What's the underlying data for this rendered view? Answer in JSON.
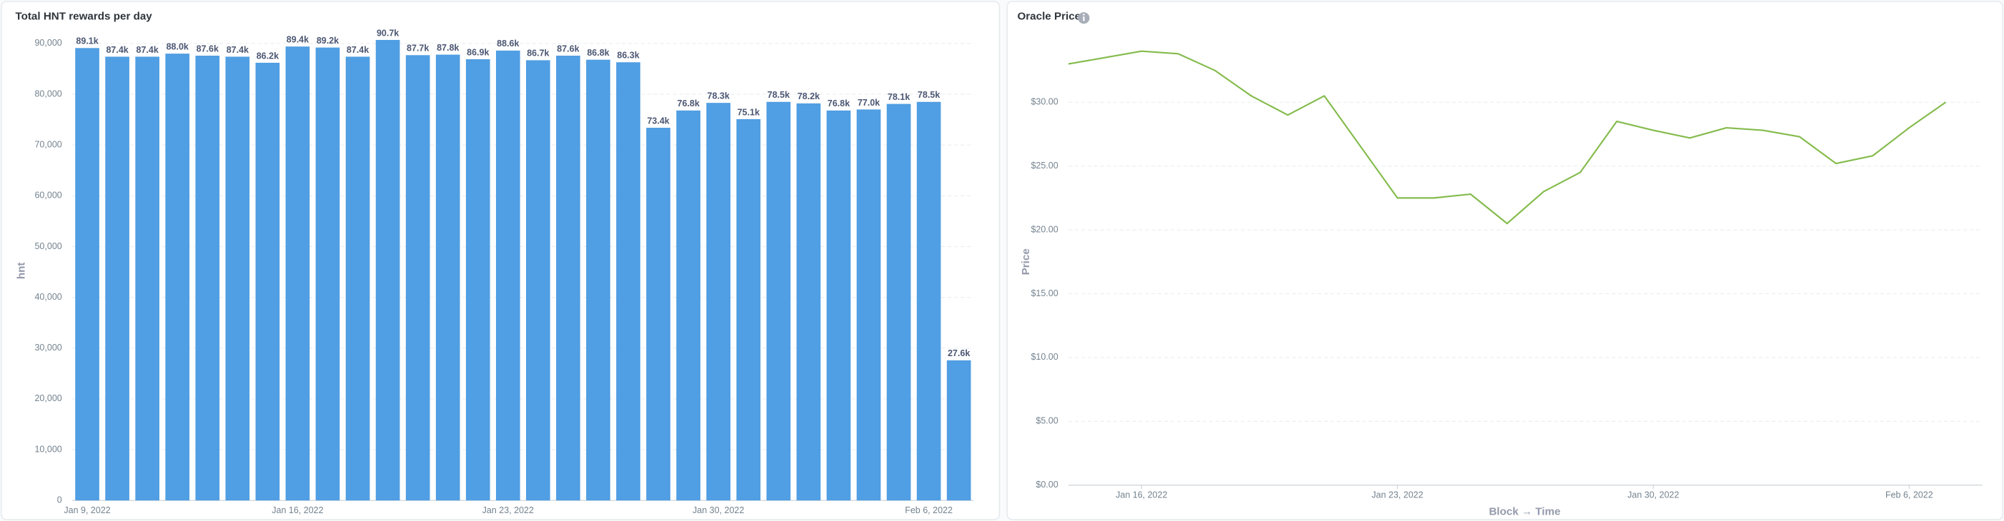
{
  "chart_data": [
    {
      "type": "bar",
      "title": "Total HNT rewards per day",
      "y_label": "hnt",
      "color": "#509ee3",
      "categories": [
        "Jan 9, 2022",
        null,
        null,
        null,
        null,
        null,
        null,
        "Jan 16, 2022",
        null,
        null,
        null,
        null,
        null,
        null,
        "Jan 23, 2022",
        null,
        null,
        null,
        null,
        null,
        null,
        "Jan 30, 2022",
        null,
        null,
        null,
        null,
        null,
        null,
        "Feb 6, 2022",
        null
      ],
      "values": [
        89100,
        87400,
        87400,
        88000,
        87600,
        87400,
        86200,
        89400,
        89200,
        87400,
        90700,
        87700,
        87800,
        86900,
        88600,
        86700,
        87600,
        86800,
        86300,
        73400,
        76800,
        78300,
        75100,
        78500,
        78200,
        76800,
        77000,
        78100,
        78500,
        27600
      ],
      "value_labels": [
        "89.1k",
        "87.4k",
        "87.4k",
        "88.0k",
        "87.6k",
        "87.4k",
        "86.2k",
        "89.4k",
        "89.2k",
        "87.4k",
        "90.7k",
        "87.7k",
        "87.8k",
        "86.9k",
        "88.6k",
        "86.7k",
        "87.6k",
        "86.8k",
        "86.3k",
        "73.4k",
        "76.8k",
        "78.3k",
        "75.1k",
        "78.5k",
        "78.2k",
        "76.8k",
        "77.0k",
        "78.1k",
        "78.5k",
        "27.6k"
      ],
      "ylim": [
        0,
        92000
      ],
      "yticks": [
        0,
        {
          "value": 10000,
          "label": "10,000"
        },
        {
          "value": 20000,
          "label": "20,000"
        },
        {
          "value": 30000,
          "label": "30,000"
        },
        {
          "value": 40000,
          "label": "40,000"
        },
        {
          "value": 50000,
          "label": "50,000"
        },
        {
          "value": 60000,
          "label": "60,000"
        },
        {
          "value": 70000,
          "label": "70,000"
        },
        {
          "value": 80000,
          "label": "80,000"
        },
        {
          "value": 90000,
          "label": "90,000"
        }
      ],
      "grid": true
    },
    {
      "type": "line",
      "title": "Oracle Price",
      "x_label": "Block → Time",
      "y_label": "Price",
      "color": "#84bb4c",
      "x": [
        "2022-01-14",
        "2022-01-15",
        "2022-01-16",
        "2022-01-17",
        "2022-01-18",
        "2022-01-19",
        "2022-01-20",
        "2022-01-21",
        "2022-01-22",
        "2022-01-23",
        "2022-01-24",
        "2022-01-25",
        "2022-01-26",
        "2022-01-27",
        "2022-01-28",
        "2022-01-29",
        "2022-01-30",
        "2022-01-31",
        "2022-02-01",
        "2022-02-02",
        "2022-02-03",
        "2022-02-04",
        "2022-02-05",
        "2022-02-06",
        "2022-02-07"
      ],
      "values": [
        33.0,
        33.5,
        34.0,
        33.8,
        32.5,
        30.5,
        29.0,
        30.5,
        26.5,
        22.5,
        22.5,
        22.8,
        20.5,
        23.0,
        24.5,
        28.5,
        27.8,
        27.2,
        28.0,
        27.8,
        27.3,
        25.2,
        25.8,
        28.0,
        30.0
      ],
      "xlim": [
        "2022-01-14",
        "2022-02-08"
      ],
      "xticks": [
        {
          "value": "2022-01-16",
          "label": "Jan 16, 2022"
        },
        {
          "value": "2022-01-23",
          "label": "Jan 23, 2022"
        },
        {
          "value": "2022-01-30",
          "label": "Jan 30, 2022"
        },
        {
          "value": "2022-02-06",
          "label": "Feb 6, 2022"
        }
      ],
      "ylim": [
        0,
        35
      ],
      "yticks": [
        {
          "value": 0,
          "label": "$0.00"
        },
        {
          "value": 5,
          "label": "$5.00"
        },
        {
          "value": 10,
          "label": "$10.00"
        },
        {
          "value": 15,
          "label": "$15.00"
        },
        {
          "value": 20,
          "label": "$20.00"
        },
        {
          "value": 25,
          "label": "$25.00"
        },
        {
          "value": 30,
          "label": "$30.00"
        }
      ],
      "grid": true
    }
  ]
}
